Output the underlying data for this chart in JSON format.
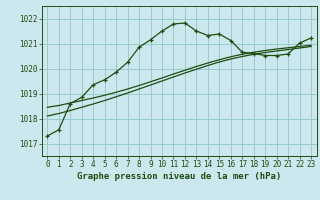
{
  "title": "Graphe pression niveau de la mer (hPa)",
  "background_color": "#cce8ee",
  "grid_color": "#99cccc",
  "line_color": "#1e4d10",
  "x_ticks": [
    0,
    1,
    2,
    3,
    4,
    5,
    6,
    7,
    8,
    9,
    10,
    11,
    12,
    13,
    14,
    15,
    16,
    17,
    18,
    19,
    20,
    21,
    22,
    23
  ],
  "ylim": [
    1016.5,
    1022.5
  ],
  "yticks": [
    1017,
    1018,
    1019,
    1020,
    1021,
    1022
  ],
  "main_series": [
    1017.3,
    1017.55,
    1018.6,
    1018.85,
    1019.35,
    1019.55,
    1019.85,
    1020.25,
    1020.85,
    1021.15,
    1021.5,
    1021.78,
    1021.82,
    1021.5,
    1021.32,
    1021.38,
    1021.12,
    1020.65,
    1020.6,
    1020.52,
    1020.52,
    1020.58,
    1021.02,
    1021.22
  ],
  "smooth_line1": [
    1018.45,
    1018.52,
    1018.62,
    1018.72,
    1018.82,
    1018.93,
    1019.05,
    1019.18,
    1019.32,
    1019.47,
    1019.62,
    1019.78,
    1019.93,
    1020.08,
    1020.22,
    1020.35,
    1020.47,
    1020.57,
    1020.65,
    1020.72,
    1020.78,
    1020.83,
    1020.88,
    1020.93
  ],
  "smooth_line2": [
    1018.1,
    1018.2,
    1018.32,
    1018.45,
    1018.58,
    1018.72,
    1018.87,
    1019.02,
    1019.18,
    1019.34,
    1019.5,
    1019.66,
    1019.82,
    1019.97,
    1020.12,
    1020.26,
    1020.38,
    1020.48,
    1020.57,
    1020.64,
    1020.7,
    1020.76,
    1020.82,
    1020.88
  ],
  "tick_fontsize": 5.5,
  "xlabel_fontsize": 6.5,
  "figsize": [
    3.2,
    2.0
  ],
  "dpi": 100
}
